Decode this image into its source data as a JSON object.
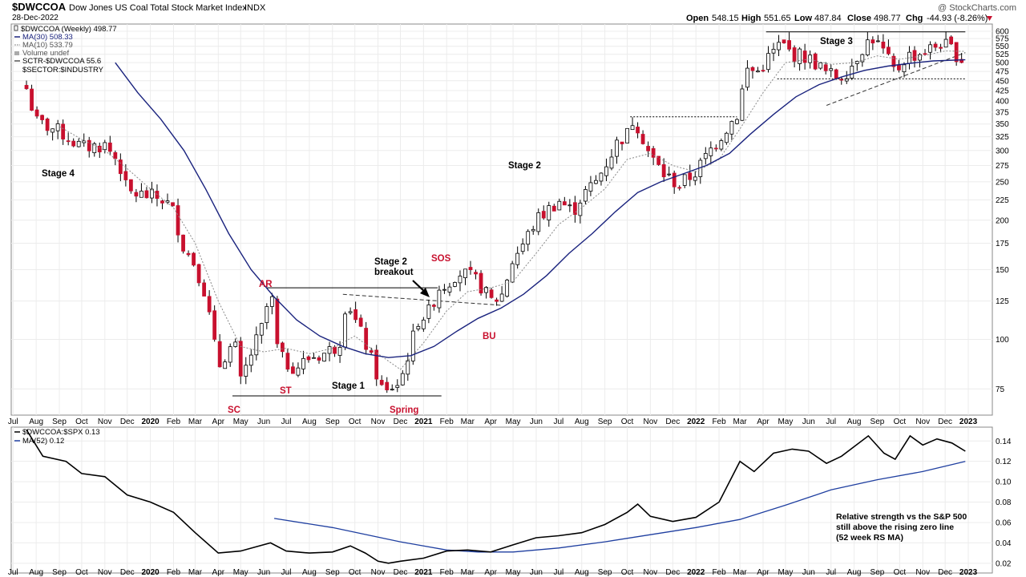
{
  "header": {
    "symbol": "$DWCCOA",
    "name": "Dow Jones US Coal Total Stock Market Index",
    "exchange": "INDX",
    "date": "28-Dec-2022",
    "open_label": "Open",
    "open": "548.15",
    "high_label": "High",
    "high": "551.65",
    "low_label": "Low",
    "low": "487.84",
    "close_label": "Close",
    "close": "498.77",
    "chg_label": "Chg",
    "chg": "-44.93 (-8.26%)",
    "watermark": "@ StockCharts.com"
  },
  "legend": {
    "price": "$DWCCOA (Weekly) 498.77",
    "ma30": "MA(30) 508.33",
    "ma10": "MA(10) 533.79",
    "volume": "Volume undef",
    "sctr": "SCTR-$DWCCOA 55.6",
    "sector": "$SECTOR:$INDUSTRY"
  },
  "rs_legend": {
    "rs": "$DWCCOA:$SPX 0.13",
    "ma": "MA(52) 0.12"
  },
  "annotations": {
    "stage4": "Stage 4",
    "stage1": "Stage 1",
    "stage2": "Stage 2",
    "stage3": "Stage 3",
    "breakout1": "Stage 2",
    "breakout2": "breakout",
    "ar": "AR",
    "sc": "SC",
    "st": "ST",
    "spring": "Spring",
    "sos": "SOS",
    "bu": "BU",
    "rs_note1": "Relative strength vs the S&P 500",
    "rs_note2": "still above the rising zero line",
    "rs_note3": "(52 week RS MA)"
  },
  "colors": {
    "up": "#ffffff",
    "down": "#c8102e",
    "ma30": "#1a237e",
    "ma10": "#888888",
    "rs": "#000000",
    "rsma": "#1f3fa0",
    "annotation": "#c8102e"
  },
  "chart_data": [
    {
      "type": "candlestick",
      "title": "$DWCCOA Dow Jones US Coal Total Stock Market Index INDX",
      "scale": "log",
      "ylim": [
        65,
        620
      ],
      "yticks": [
        75,
        100,
        125,
        150,
        175,
        200,
        225,
        250,
        275,
        300,
        325,
        350,
        375,
        400,
        425,
        450,
        475,
        500,
        525,
        550,
        575,
        600
      ],
      "x_ticks": [
        "Jul",
        "Aug",
        "Sep",
        "Oct",
        "Nov",
        "Dec",
        "2020",
        "Feb",
        "Mar",
        "Apr",
        "May",
        "Jun",
        "Jul",
        "Aug",
        "Sep",
        "Oct",
        "Nov",
        "Dec",
        "2021",
        "Feb",
        "Mar",
        "Apr",
        "May",
        "Jun",
        "Jul",
        "Aug",
        "Sep",
        "Oct",
        "Nov",
        "Dec",
        "2022",
        "Feb",
        "Mar",
        "Apr",
        "May",
        "Jun",
        "Jul",
        "Aug",
        "Sep",
        "Oct",
        "Nov",
        "Dec",
        "2023"
      ],
      "close_path": [
        [
          "2019-07-19",
          430
        ],
        [
          "2019-08-01",
          355
        ],
        [
          "2019-09-01",
          335
        ],
        [
          "2019-10-01",
          305
        ],
        [
          "2019-11-01",
          310
        ],
        [
          "2019-11-20",
          280
        ],
        [
          "2019-12-01",
          235
        ],
        [
          "2020-01-01",
          230
        ],
        [
          "2020-01-20",
          225
        ],
        [
          "2020-02-01",
          210
        ],
        [
          "2020-02-15",
          170
        ],
        [
          "2020-03-01",
          155
        ],
        [
          "2020-03-15",
          130
        ],
        [
          "2020-04-01",
          85
        ],
        [
          "2020-04-15",
          95
        ],
        [
          "2020-04-25",
          95
        ],
        [
          "2020-05-01",
          78
        ],
        [
          "2020-05-15",
          92
        ],
        [
          "2020-06-01",
          110
        ],
        [
          "2020-06-10",
          135
        ],
        [
          "2020-06-20",
          92
        ],
        [
          "2020-07-01",
          87
        ],
        [
          "2020-07-15",
          85
        ],
        [
          "2020-08-01",
          90
        ],
        [
          "2020-08-20",
          92
        ],
        [
          "2020-09-10",
          97
        ],
        [
          "2020-09-20",
          128
        ],
        [
          "2020-10-01",
          112
        ],
        [
          "2020-10-15",
          98
        ],
        [
          "2020-11-01",
          80
        ],
        [
          "2020-11-10",
          72
        ],
        [
          "2020-11-20",
          76
        ],
        [
          "2020-12-01",
          78
        ],
        [
          "2020-12-10",
          90
        ],
        [
          "2020-12-25",
          112
        ],
        [
          "2021-01-10",
          118
        ],
        [
          "2021-01-20",
          135
        ],
        [
          "2021-02-01",
          138
        ],
        [
          "2021-02-15",
          148
        ],
        [
          "2021-03-01",
          145
        ],
        [
          "2021-03-15",
          140
        ],
        [
          "2021-04-01",
          125
        ],
        [
          "2021-04-15",
          128
        ],
        [
          "2021-05-01",
          160
        ],
        [
          "2021-05-15",
          175
        ],
        [
          "2021-06-01",
          200
        ],
        [
          "2021-06-20",
          215
        ],
        [
          "2021-07-01",
          225
        ],
        [
          "2021-07-20",
          210
        ],
        [
          "2021-08-01",
          230
        ],
        [
          "2021-08-20",
          250
        ],
        [
          "2021-09-01",
          275
        ],
        [
          "2021-09-20",
          320
        ],
        [
          "2021-10-01",
          330
        ],
        [
          "2021-10-10",
          365
        ],
        [
          "2021-10-20",
          330
        ],
        [
          "2021-11-01",
          290
        ],
        [
          "2021-11-20",
          260
        ],
        [
          "2021-12-10",
          245
        ],
        [
          "2022-01-01",
          265
        ],
        [
          "2022-01-20",
          300
        ],
        [
          "2022-02-10",
          340
        ],
        [
          "2022-02-25",
          370
        ],
        [
          "2022-03-10",
          480
        ],
        [
          "2022-03-25",
          475
        ],
        [
          "2022-04-10",
          520
        ],
        [
          "2022-04-25",
          560
        ],
        [
          "2022-05-10",
          525
        ],
        [
          "2022-05-25",
          520
        ],
        [
          "2022-06-10",
          500
        ],
        [
          "2022-06-25",
          470
        ],
        [
          "2022-07-10",
          460
        ],
        [
          "2022-07-25",
          480
        ],
        [
          "2022-08-10",
          540
        ],
        [
          "2022-08-25",
          580
        ],
        [
          "2022-09-10",
          530
        ],
        [
          "2022-09-25",
          470
        ],
        [
          "2022-10-10",
          520
        ],
        [
          "2022-10-25",
          525
        ],
        [
          "2022-11-10",
          540
        ],
        [
          "2022-11-25",
          560
        ],
        [
          "2022-12-10",
          540
        ],
        [
          "2022-12-28",
          498.77
        ]
      ],
      "ma30": [
        [
          "2019-11-15",
          500
        ],
        [
          "2019-12-15",
          420
        ],
        [
          "2020-01-15",
          360
        ],
        [
          "2020-02-15",
          300
        ],
        [
          "2020-03-15",
          240
        ],
        [
          "2020-04-15",
          185
        ],
        [
          "2020-05-15",
          150
        ],
        [
          "2020-06-15",
          128
        ],
        [
          "2020-07-15",
          112
        ],
        [
          "2020-08-15",
          102
        ],
        [
          "2020-09-15",
          96
        ],
        [
          "2020-10-15",
          92
        ],
        [
          "2020-11-15",
          90
        ],
        [
          "2020-12-15",
          91
        ],
        [
          "2021-01-15",
          96
        ],
        [
          "2021-02-15",
          105
        ],
        [
          "2021-03-15",
          113
        ],
        [
          "2021-04-15",
          120
        ],
        [
          "2021-05-15",
          130
        ],
        [
          "2021-06-15",
          145
        ],
        [
          "2021-07-15",
          165
        ],
        [
          "2021-08-15",
          185
        ],
        [
          "2021-09-15",
          210
        ],
        [
          "2021-10-15",
          235
        ],
        [
          "2021-11-15",
          250
        ],
        [
          "2021-12-15",
          262
        ],
        [
          "2022-01-15",
          275
        ],
        [
          "2022-02-15",
          295
        ],
        [
          "2022-03-15",
          330
        ],
        [
          "2022-04-15",
          370
        ],
        [
          "2022-05-15",
          410
        ],
        [
          "2022-06-15",
          440
        ],
        [
          "2022-07-15",
          460
        ],
        [
          "2022-08-15",
          478
        ],
        [
          "2022-09-15",
          490
        ],
        [
          "2022-10-15",
          498
        ],
        [
          "2022-11-15",
          505
        ],
        [
          "2022-12-28",
          508.33
        ]
      ],
      "ma10": [
        [
          "2019-09-01",
          345
        ],
        [
          "2019-10-01",
          320
        ],
        [
          "2019-11-01",
          300
        ],
        [
          "2019-12-01",
          270
        ],
        [
          "2020-01-01",
          240
        ],
        [
          "2020-02-01",
          215
        ],
        [
          "2020-03-01",
          175
        ],
        [
          "2020-04-01",
          125
        ],
        [
          "2020-05-01",
          96
        ],
        [
          "2020-06-01",
          93
        ],
        [
          "2020-07-01",
          95
        ],
        [
          "2020-08-01",
          92
        ],
        [
          "2020-09-01",
          95
        ],
        [
          "2020-10-01",
          102
        ],
        [
          "2020-11-01",
          92
        ],
        [
          "2020-12-01",
          84
        ],
        [
          "2021-01-01",
          98
        ],
        [
          "2021-02-01",
          118
        ],
        [
          "2021-03-01",
          132
        ],
        [
          "2021-04-01",
          135
        ],
        [
          "2021-05-01",
          140
        ],
        [
          "2021-06-01",
          165
        ],
        [
          "2021-07-01",
          195
        ],
        [
          "2021-08-01",
          215
        ],
        [
          "2021-09-01",
          240
        ],
        [
          "2021-10-01",
          285
        ],
        [
          "2021-11-01",
          295
        ],
        [
          "2021-12-01",
          275
        ],
        [
          "2022-01-01",
          265
        ],
        [
          "2022-02-01",
          285
        ],
        [
          "2022-03-01",
          340
        ],
        [
          "2022-04-01",
          420
        ],
        [
          "2022-05-01",
          500
        ],
        [
          "2022-06-01",
          510
        ],
        [
          "2022-07-01",
          495
        ],
        [
          "2022-08-01",
          500
        ],
        [
          "2022-09-01",
          520
        ],
        [
          "2022-10-01",
          510
        ],
        [
          "2022-11-01",
          520
        ],
        [
          "2022-12-01",
          535
        ],
        [
          "2022-12-28",
          533.79
        ]
      ],
      "levels": [
        {
          "from": "2020-06-05",
          "to": "2021-01-20",
          "y": 135,
          "style": "solid"
        },
        {
          "from": "2020-04-20",
          "to": "2021-01-25",
          "y": 72,
          "style": "solid"
        },
        {
          "from": "2021-10-05",
          "to": "2022-02-25",
          "y": 365,
          "style": "dotted"
        },
        {
          "from": "2022-04-05",
          "to": "2022-12-28",
          "y": 598,
          "style": "solid"
        },
        {
          "from": "2022-04-20",
          "to": "2022-12-28",
          "y": 455,
          "style": "dotted"
        }
      ],
      "trendlines": [
        {
          "from": [
            "2020-09-15",
            130
          ],
          "to": [
            "2021-04-15",
            122
          ],
          "style": "dashed"
        },
        {
          "from": [
            "2022-06-25",
            390
          ],
          "to": [
            "2022-12-28",
            530
          ],
          "style": "dashed"
        }
      ]
    },
    {
      "type": "line",
      "title": "$DWCCOA:$SPX 0.13",
      "ylim": [
        0.012,
        0.152
      ],
      "yticks": [
        0.02,
        0.04,
        0.06,
        0.08,
        0.1,
        0.12,
        0.14
      ],
      "series": [
        {
          "name": "$DWCCOA:$SPX",
          "points": [
            [
              "2019-07-19",
              0.151
            ],
            [
              "2019-08-10",
              0.125
            ],
            [
              "2019-09-10",
              0.12
            ],
            [
              "2019-10-01",
              0.108
            ],
            [
              "2019-11-01",
              0.105
            ],
            [
              "2019-12-01",
              0.087
            ],
            [
              "2020-01-01",
              0.08
            ],
            [
              "2020-02-01",
              0.07
            ],
            [
              "2020-03-01",
              0.05
            ],
            [
              "2020-04-01",
              0.03
            ],
            [
              "2020-05-01",
              0.032
            ],
            [
              "2020-06-10",
              0.04
            ],
            [
              "2020-07-01",
              0.032
            ],
            [
              "2020-08-01",
              0.03
            ],
            [
              "2020-09-01",
              0.031
            ],
            [
              "2020-09-25",
              0.037
            ],
            [
              "2020-10-15",
              0.03
            ],
            [
              "2020-11-01",
              0.022
            ],
            [
              "2020-11-15",
              0.02
            ],
            [
              "2020-12-01",
              0.022
            ],
            [
              "2021-01-01",
              0.025
            ],
            [
              "2021-02-01",
              0.032
            ],
            [
              "2021-03-01",
              0.033
            ],
            [
              "2021-04-01",
              0.031
            ],
            [
              "2021-05-01",
              0.038
            ],
            [
              "2021-06-01",
              0.045
            ],
            [
              "2021-07-01",
              0.047
            ],
            [
              "2021-08-01",
              0.05
            ],
            [
              "2021-09-01",
              0.058
            ],
            [
              "2021-10-01",
              0.07
            ],
            [
              "2021-10-15",
              0.078
            ],
            [
              "2021-11-01",
              0.066
            ],
            [
              "2021-12-01",
              0.061
            ],
            [
              "2022-01-01",
              0.065
            ],
            [
              "2022-02-01",
              0.08
            ],
            [
              "2022-03-01",
              0.12
            ],
            [
              "2022-03-20",
              0.11
            ],
            [
              "2022-04-15",
              0.128
            ],
            [
              "2022-05-10",
              0.132
            ],
            [
              "2022-06-01",
              0.13
            ],
            [
              "2022-06-25",
              0.118
            ],
            [
              "2022-07-15",
              0.125
            ],
            [
              "2022-08-20",
              0.145
            ],
            [
              "2022-09-10",
              0.128
            ],
            [
              "2022-09-25",
              0.122
            ],
            [
              "2022-10-15",
              0.145
            ],
            [
              "2022-11-01",
              0.136
            ],
            [
              "2022-11-20",
              0.142
            ],
            [
              "2022-12-10",
              0.138
            ],
            [
              "2022-12-28",
              0.13
            ]
          ]
        },
        {
          "name": "MA(52)",
          "points": [
            [
              "2020-06-15",
              0.064
            ],
            [
              "2020-09-01",
              0.055
            ],
            [
              "2020-12-01",
              0.041
            ],
            [
              "2021-02-01",
              0.033
            ],
            [
              "2021-03-15",
              0.031
            ],
            [
              "2021-05-01",
              0.031
            ],
            [
              "2021-07-01",
              0.035
            ],
            [
              "2021-09-01",
              0.041
            ],
            [
              "2021-11-01",
              0.048
            ],
            [
              "2022-01-01",
              0.055
            ],
            [
              "2022-03-01",
              0.063
            ],
            [
              "2022-05-01",
              0.077
            ],
            [
              "2022-07-01",
              0.092
            ],
            [
              "2022-09-01",
              0.102
            ],
            [
              "2022-11-01",
              0.11
            ],
            [
              "2022-12-28",
              0.12
            ]
          ]
        }
      ]
    }
  ]
}
